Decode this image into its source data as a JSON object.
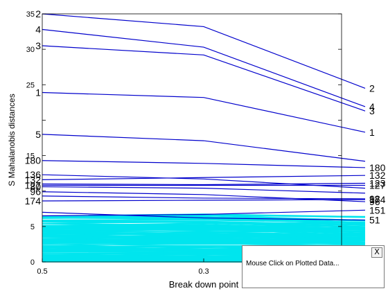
{
  "chart_data": {
    "type": "line",
    "xlabel": "Break down point",
    "ylabel": "S Mahalanobis distances",
    "x": [
      0.5,
      0.3,
      0.1
    ],
    "x_tick_labels": [
      "0.5",
      "0.3"
    ],
    "ylim": [
      0,
      35
    ],
    "y_ticks": [
      0,
      5,
      10,
      15,
      20,
      25,
      30,
      35
    ],
    "y_tick_labels": [
      "0",
      "5",
      "",
      "15",
      "",
      "25",
      "30",
      "35"
    ],
    "colors": {
      "highlighted": "#0000cc",
      "background": "#00e5ee"
    },
    "highlighted_series": [
      {
        "left_label": "2",
        "right_label": "2",
        "values": [
          35.0,
          33.2,
          24.5
        ]
      },
      {
        "left_label": "4",
        "right_label": "4",
        "values": [
          32.8,
          30.3,
          21.9
        ]
      },
      {
        "left_label": "3",
        "right_label": "3",
        "values": [
          30.5,
          29.2,
          21.3
        ]
      },
      {
        "left_label": "1",
        "right_label": "1",
        "values": [
          23.9,
          23.2,
          18.3
        ]
      },
      {
        "left_label": "5",
        "right_label": "",
        "values": [
          18.0,
          17.1,
          14.2
        ]
      },
      {
        "left_label": "180",
        "right_label": "180",
        "values": [
          14.3,
          13.9,
          13.3
        ]
      },
      {
        "left_label": "136",
        "right_label": "",
        "values": [
          12.3,
          11.7,
          10.4
        ]
      },
      {
        "left_label": "132",
        "right_label": "132",
        "values": [
          11.6,
          11.9,
          12.2
        ]
      },
      {
        "left_label": "127",
        "right_label": "127",
        "values": [
          10.8,
          10.8,
          10.8
        ]
      },
      {
        "left_label": "80",
        "right_label": "",
        "values": [
          10.6,
          10.4,
          9.7
        ]
      },
      {
        "left_label": "96",
        "right_label": "96",
        "values": [
          9.9,
          9.5,
          8.5
        ]
      },
      {
        "left_label": "174",
        "right_label": "174",
        "values": [
          8.6,
          8.7,
          8.8
        ]
      },
      {
        "left_label": "",
        "right_label": "123",
        "values": [
          11.0,
          10.9,
          11.1
        ]
      },
      {
        "left_label": "",
        "right_label": "98",
        "values": [
          9.3,
          9.0,
          8.9
        ]
      },
      {
        "left_label": "",
        "right_label": "151",
        "values": [
          6.5,
          6.7,
          7.3
        ]
      },
      {
        "left_label": "",
        "right_label": "51",
        "values": [
          7.0,
          6.2,
          5.9
        ]
      }
    ],
    "background_band": {
      "min": 0.0,
      "max": 6.5,
      "count": 140
    }
  },
  "popup": {
    "message": "Mouse Click on Plotted Data...",
    "close_label": "X"
  }
}
